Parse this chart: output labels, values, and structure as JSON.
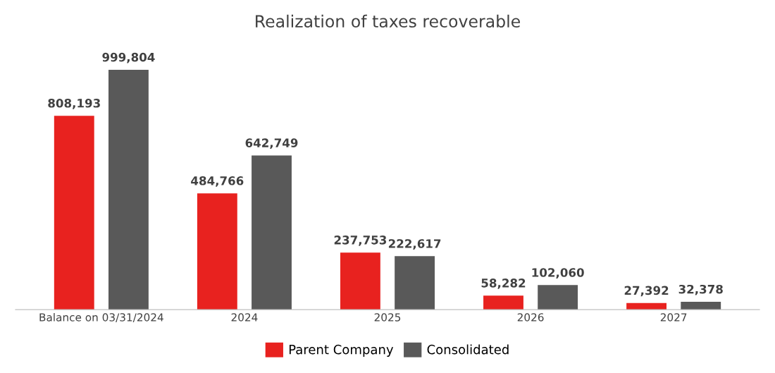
{
  "chart_data": {
    "type": "bar",
    "title": "Realization of taxes recoverable",
    "categories": [
      "Balance on 03/31/2024",
      "2024",
      "2025",
      "2026",
      "2027"
    ],
    "series": [
      {
        "name": "Parent Company",
        "color": "#e8221f",
        "values": [
          808193,
          484766,
          237753,
          58282,
          27392
        ],
        "value_labels": [
          "808,193",
          "484,766",
          "237,753",
          "58,282",
          "27,392"
        ]
      },
      {
        "name": "Consolidated",
        "color": "#595959",
        "values": [
          999804,
          642749,
          222617,
          102060,
          32378
        ],
        "value_labels": [
          "999,804",
          "642,749",
          "222,617",
          "102,060",
          "32,378"
        ]
      }
    ],
    "legend": "bottom",
    "grid": false,
    "tick_labels": "x"
  }
}
